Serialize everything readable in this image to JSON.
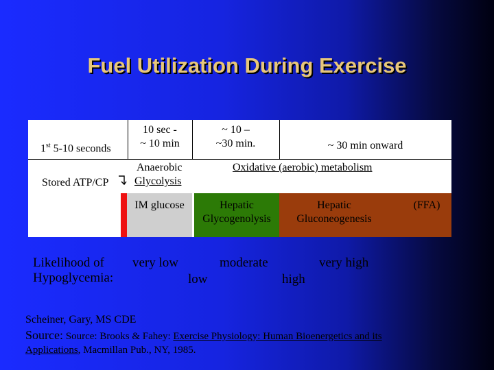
{
  "title": "Fuel Utilization During Exercise",
  "table": {
    "col1_sup": "st",
    "col1_pre": "1",
    "col1_rest": " 5-10 seconds",
    "col2_line1": "10 sec -",
    "col2_line2": "~ 10 min",
    "col3_line1": "~ 10 –",
    "col3_line2": "~30 min.",
    "col4": "~ 30 min onward",
    "stored": "Stored ATP/CP",
    "arrow": "→",
    "anaerobic": "Anaerobic",
    "glycolysis": "Glycolysis",
    "oxidative": "Oxidative (aerobic) metabolism",
    "im_glucose": "IM glucose",
    "hepatic1_line1": "Hepatic",
    "hepatic1_line2": "Glycogenolysis",
    "hepatic2_line1": "Hepatic",
    "hepatic2_line2": "Gluconeogenesis",
    "ffa": "(FFA)"
  },
  "likelihood": {
    "label_line1": "Likelihood of",
    "label_line2": "Hypoglycemia:",
    "very_low": "very low",
    "low": "low",
    "moderate": "moderate",
    "high": "high",
    "very_high": "very high"
  },
  "footer": {
    "author": "Scheiner, Gary, MS CDE",
    "source_label": "Source:",
    "source_pre": " Source: Brooks & Fahey: ",
    "source_title_1": "Exercise Physiology: Human Bioenergetics and its",
    "source_title_2": "Applications",
    "source_post": ", Macmillan Pub., NY, 1985."
  }
}
